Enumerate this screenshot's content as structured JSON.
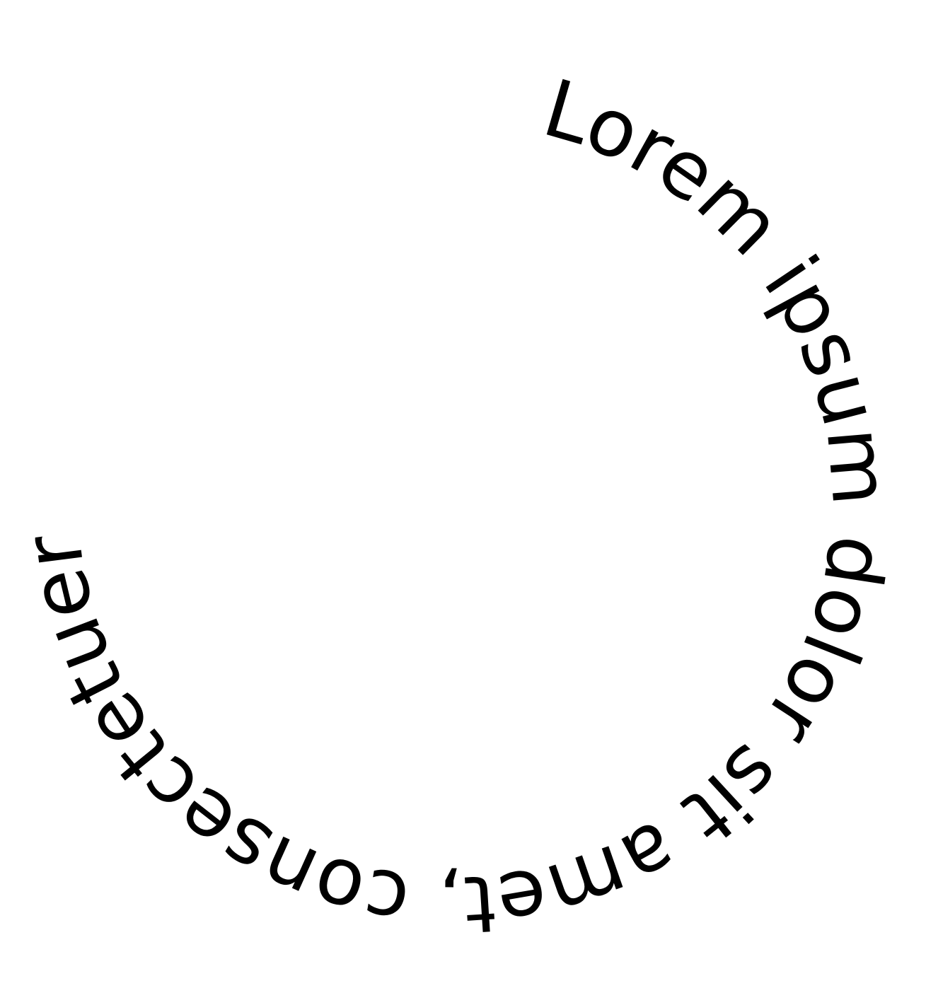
{
  "circle_text": "Lorem ipsum dolor sit amet, consectetuer",
  "colors": {
    "background": "#ffffff",
    "text": "#000000"
  }
}
